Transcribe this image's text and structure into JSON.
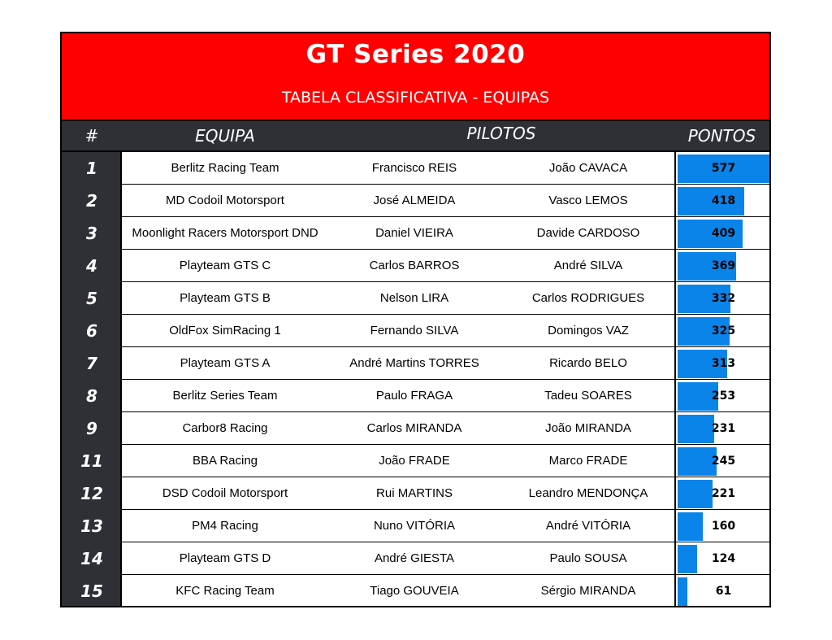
{
  "title": "GT Series 2020",
  "subtitle": "TABELA CLASSIFICATIVA - EQUIPAS",
  "headers": {
    "rank": "#",
    "team": "EQUIPA",
    "drivers": "PILOTOS",
    "points": "PONTOS"
  },
  "colors": {
    "banner": "#ff0000",
    "header": "#2e3035",
    "bar": "#0a84e8"
  },
  "chart_data": {
    "type": "bar",
    "title": "GT Series 2020",
    "subtitle": "TABELA CLASSIFICATIVA - EQUIPAS",
    "xlim": [
      0,
      577
    ],
    "rows": [
      {
        "rank": "1",
        "team": "Berlitz Racing Team",
        "driver1": "Francisco REIS",
        "driver2": "João CAVACA",
        "points": 577
      },
      {
        "rank": "2",
        "team": "MD Codoil Motorsport",
        "driver1": "José ALMEIDA",
        "driver2": "Vasco LEMOS",
        "points": 418
      },
      {
        "rank": "3",
        "team": "Moonlight Racers Motorsport DND",
        "driver1": "Daniel VIEIRA",
        "driver2": "Davide CARDOSO",
        "points": 409
      },
      {
        "rank": "4",
        "team": "Playteam GTS C",
        "driver1": "Carlos BARROS",
        "driver2": "André SILVA",
        "points": 369
      },
      {
        "rank": "5",
        "team": "Playteam GTS B",
        "driver1": "Nelson LIRA",
        "driver2": "Carlos RODRIGUES",
        "points": 332
      },
      {
        "rank": "6",
        "team": "OldFox SimRacing 1",
        "driver1": "Fernando SILVA",
        "driver2": "Domingos VAZ",
        "points": 325
      },
      {
        "rank": "7",
        "team": "Playteam GTS A",
        "driver1": "André Martins TORRES",
        "driver2": "Ricardo BELO",
        "points": 313
      },
      {
        "rank": "8",
        "team": "Berlitz Series Team",
        "driver1": "Paulo FRAGA",
        "driver2": "Tadeu SOARES",
        "points": 253
      },
      {
        "rank": "9",
        "team": "Carbor8 Racing",
        "driver1": "Carlos MIRANDA",
        "driver2": "João MIRANDA",
        "points": 231
      },
      {
        "rank": "11",
        "team": "BBA Racing",
        "driver1": "João FRADE",
        "driver2": "Marco FRADE",
        "points": 245
      },
      {
        "rank": "12",
        "team": "DSD Codoil Motorsport",
        "driver1": "Rui MARTINS",
        "driver2": "Leandro MENDONÇA",
        "points": 221
      },
      {
        "rank": "13",
        "team": "PM4 Racing",
        "driver1": "Nuno VITÓRIA",
        "driver2": "André VITÓRIA",
        "points": 160
      },
      {
        "rank": "14",
        "team": "Playteam GTS D",
        "driver1": "André GIESTA",
        "driver2": "Paulo SOUSA",
        "points": 124
      },
      {
        "rank": "15",
        "team": "KFC Racing Team",
        "driver1": "Tiago GOUVEIA",
        "driver2": "Sérgio MIRANDA",
        "points": 61
      }
    ]
  }
}
